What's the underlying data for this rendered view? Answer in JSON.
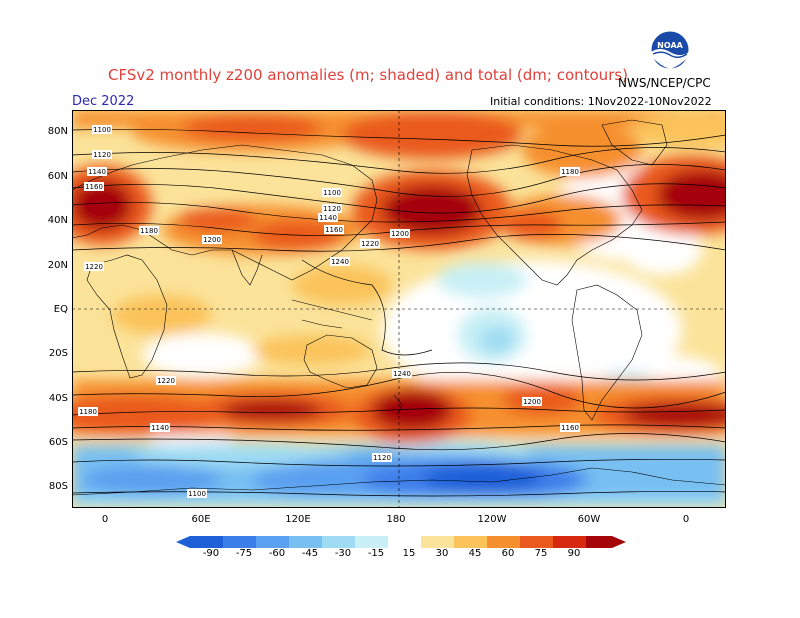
{
  "header": {
    "title": "CFSv2 monthly z200 anomalies (m; shaded) and total (dm; contours)",
    "month": "Dec 2022",
    "initial_conditions": "Initial conditions: 1Nov2022-10Nov2022",
    "agency": "NWS/NCEP/CPC",
    "logo_text": "NOAA"
  },
  "axes": {
    "lat_labels": [
      "80N",
      "60N",
      "40N",
      "20N",
      "EQ",
      "20S",
      "40S",
      "60S",
      "80S"
    ],
    "lon_labels": [
      "0",
      "60E",
      "120E",
      "180",
      "120W",
      "60W",
      "0"
    ]
  },
  "colorbar": {
    "labels": [
      "-90",
      "-75",
      "-60",
      "-45",
      "-30",
      "-15",
      "15",
      "30",
      "45",
      "60",
      "75",
      "90"
    ],
    "colors": [
      "#1e5fd8",
      "#3c7fea",
      "#5aa0f0",
      "#78bff2",
      "#9fdcf3",
      "#c8f0f6",
      "#ffffff",
      "#fbe39a",
      "#fbc35a",
      "#f6902f",
      "#ea5a1f",
      "#d72810",
      "#a5060a"
    ]
  },
  "contours": {
    "labels": [
      "1100",
      "1120",
      "1140",
      "1160",
      "1180",
      "1200",
      "1220",
      "1240",
      "1100",
      "1120",
      "1140",
      "1160",
      "1180",
      "1200",
      "1220",
      "1240",
      "1220",
      "1200",
      "1180",
      "1160",
      "1140",
      "1120",
      "1100"
    ]
  }
}
